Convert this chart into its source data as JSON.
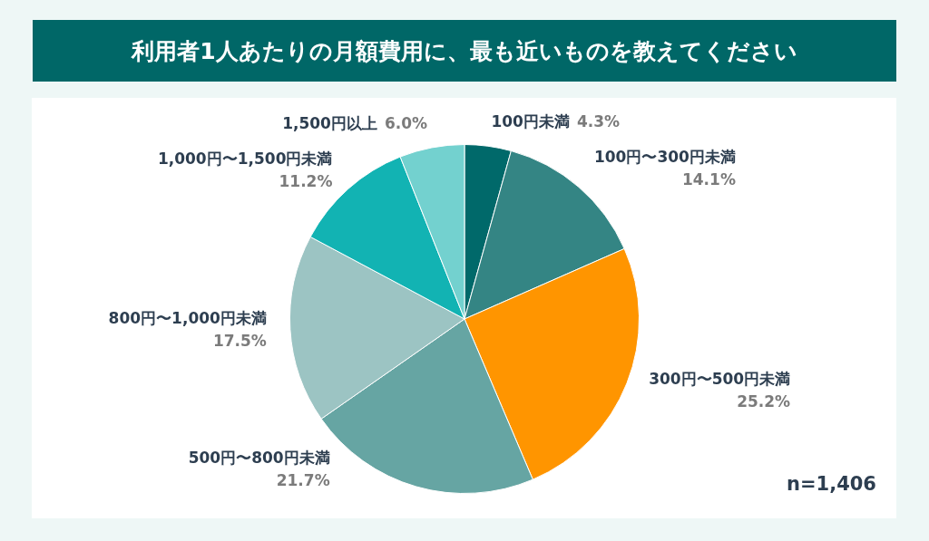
{
  "chart_data": {
    "type": "pie",
    "title": "利用者1人あたりの月額費用に、最も近いものを教えてください",
    "categories": [
      "100円未満",
      "100円〜300円未満",
      "300円〜500円未満",
      "500円〜800円未満",
      "800円〜1,000円未満",
      "1,000円〜1,500円未満",
      "1,500円以上"
    ],
    "values": [
      4.3,
      14.1,
      25.2,
      21.7,
      17.5,
      11.2,
      6.0
    ],
    "colors": [
      "#00696a",
      "#348584",
      "#ff9500",
      "#66a5a3",
      "#9cc4c3",
      "#12b3b3",
      "#73d1cf"
    ],
    "value_labels": [
      "4.3%",
      "14.1%",
      "25.2%",
      "21.7%",
      "17.5%",
      "11.2%",
      "6.0%"
    ],
    "annotations": [
      "n=1,406"
    ]
  }
}
